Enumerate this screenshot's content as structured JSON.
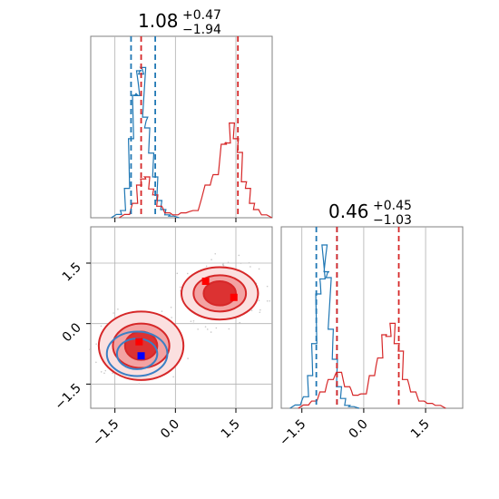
{
  "colors": {
    "blue": "#1f77b4",
    "red": "#d62728",
    "grid": "#b0b0b0",
    "fill_red": "#f4a6a6"
  },
  "chart_data": {
    "type": "corner",
    "panels": [
      {
        "id": "param0-marginal",
        "type": "histogram",
        "title": {
          "value": "1.08",
          "plus": "+0.47",
          "minus": "−1.94"
        },
        "xlim": [
          -2.1,
          2.4
        ],
        "vlines": {
          "blue": [
            -1.1,
            -0.5
          ],
          "red": [
            -0.85,
            1.55
          ]
        },
        "series": [
          {
            "color": "#1f77b4",
            "x": [
              -1.4,
              -1.3,
              -1.2,
              -1.1,
              -1.0,
              -0.95,
              -0.9,
              -0.85,
              -0.8,
              -0.75,
              -0.7,
              -0.6,
              -0.5,
              -0.4,
              -0.3,
              -0.2,
              -0.1
            ],
            "y": [
              0.02,
              0.05,
              0.18,
              0.55,
              0.75,
              0.85,
              0.9,
              1.0,
              0.92,
              0.7,
              0.55,
              0.45,
              0.25,
              0.12,
              0.05,
              0.02,
              0.01
            ]
          },
          {
            "color": "#d62728",
            "x": [
              -1.2,
              -1.0,
              -0.9,
              -0.8,
              -0.7,
              -0.6,
              -0.5,
              -0.4,
              -0.2,
              0.0,
              0.2,
              0.5,
              0.8,
              1.0,
              1.2,
              1.3,
              1.4,
              1.5,
              1.6,
              1.7,
              1.8,
              1.9,
              2.0,
              2.2
            ],
            "y": [
              0.02,
              0.1,
              0.2,
              0.27,
              0.25,
              0.2,
              0.14,
              0.08,
              0.03,
              0.02,
              0.03,
              0.05,
              0.2,
              0.3,
              0.45,
              0.52,
              0.58,
              0.55,
              0.4,
              0.25,
              0.18,
              0.1,
              0.05,
              0.02
            ]
          }
        ]
      },
      {
        "id": "param1-marginal",
        "type": "histogram",
        "title": {
          "value": "0.46",
          "plus": "+0.45",
          "minus": "−1.03"
        },
        "xlim": [
          -2.0,
          2.4
        ],
        "xticks": [
          "−1.5",
          "0.0",
          "1.5"
        ],
        "vlines": {
          "blue": [
            -1.15,
            -0.65
          ],
          "red": [
            -0.65,
            0.85
          ]
        },
        "series": [
          {
            "color": "#1f77b4",
            "x": [
              -1.6,
              -1.4,
              -1.3,
              -1.2,
              -1.1,
              -1.0,
              -0.95,
              -0.9,
              -0.85,
              -0.8,
              -0.7,
              -0.6,
              -0.5,
              -0.4,
              -0.3
            ],
            "y": [
              0.02,
              0.08,
              0.2,
              0.45,
              0.7,
              0.9,
              1.0,
              0.95,
              0.8,
              0.55,
              0.3,
              0.15,
              0.06,
              0.02,
              0.01
            ]
          },
          {
            "color": "#d62728",
            "x": [
              -1.4,
              -1.2,
              -1.0,
              -0.8,
              -0.6,
              -0.4,
              -0.2,
              0.0,
              0.2,
              0.4,
              0.5,
              0.6,
              0.7,
              0.8,
              0.9,
              1.0,
              1.2,
              1.4,
              1.6,
              1.8
            ],
            "y": [
              0.02,
              0.05,
              0.1,
              0.2,
              0.22,
              0.15,
              0.08,
              0.1,
              0.2,
              0.35,
              0.45,
              0.5,
              0.52,
              0.45,
              0.35,
              0.2,
              0.1,
              0.05,
              0.03,
              0.02
            ]
          }
        ]
      },
      {
        "id": "joint",
        "type": "contour",
        "xlim": [
          -2.1,
          2.4
        ],
        "ylim": [
          -2.1,
          2.4
        ],
        "xticks": [
          "−1.5",
          "0.0",
          "1.5"
        ],
        "yticks": [
          "−1.5",
          "0.0",
          "1.5"
        ],
        "red_modes": [
          {
            "center": [
              -0.85,
              -0.55
            ],
            "levels": [
              [
                1.05,
                0.85
              ],
              [
                0.7,
                0.55
              ],
              [
                0.4,
                0.35
              ]
            ]
          },
          {
            "center": [
              1.1,
              0.75
            ],
            "levels": [
              [
                0.95,
                0.65
              ],
              [
                0.65,
                0.45
              ],
              [
                0.4,
                0.3
              ]
            ]
          }
        ],
        "blue_contours": {
          "center": [
            -0.95,
            -0.75
          ],
          "levels": [
            [
              0.75,
              0.55
            ],
            [
              0.5,
              0.38
            ]
          ]
        },
        "markers": [
          {
            "x": 0.75,
            "y": 1.05,
            "color": "#ff0000"
          },
          {
            "x": 1.45,
            "y": 0.65,
            "color": "#ff0000"
          },
          {
            "x": -0.9,
            "y": -0.45,
            "color": "#ff0000"
          },
          {
            "x": -0.85,
            "y": -0.8,
            "color": "#0000ff"
          }
        ]
      }
    ]
  }
}
